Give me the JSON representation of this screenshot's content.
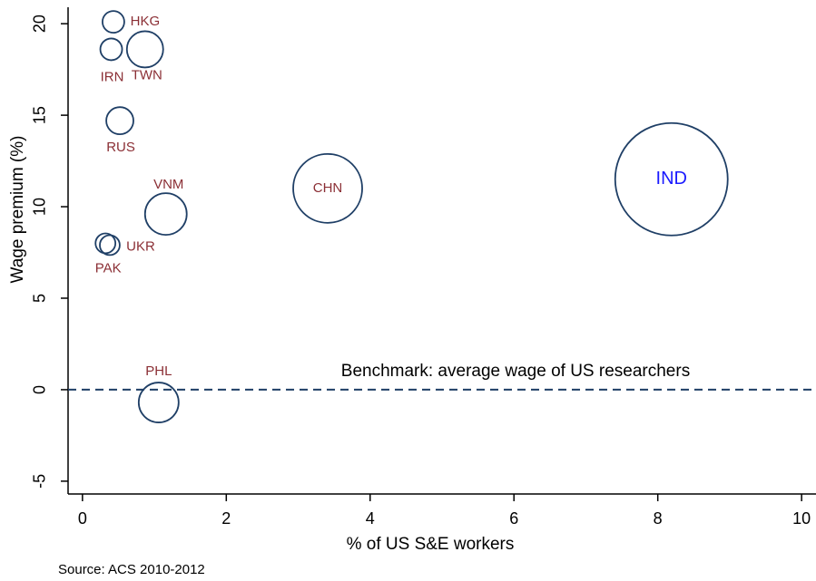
{
  "chart_data": {
    "type": "scatter",
    "x_label": "% of US S&E workers",
    "y_label": "Wage premium (%)",
    "annotation": "Benchmark: average wage of US researchers",
    "source": "Source: ACS 2010-2012",
    "reference_line": 0,
    "labels": [
      "HKG",
      "IRN",
      "TWN",
      "RUS",
      "VNM",
      "PAK",
      "UKR",
      "PHL",
      "CHN",
      "IND"
    ],
    "x": [
      0.43,
      0.4,
      0.87,
      0.52,
      1.16,
      0.32,
      0.38,
      1.06,
      3.41,
      8.19
    ],
    "y": [
      20.1,
      18.6,
      18.6,
      14.7,
      9.6,
      8.0,
      7.9,
      -0.7,
      11.0,
      11.5
    ],
    "sizes": [
      0.36,
      0.36,
      1.0,
      0.56,
      1.32,
      0.3,
      0.3,
      1.21,
      3.61,
      9.61
    ],
    "label_colors": [
      "#8b2f35",
      "#8b2f35",
      "#8b2f35",
      "#8b2f35",
      "#8b2f35",
      "#8b2f35",
      "#8b2f35",
      "#8b2f35",
      "#8b2f35",
      "#1a1aff"
    ],
    "color": "#1f3f66",
    "reference_color": "#1f3f66",
    "xlim": [
      -0.2,
      10.2
    ],
    "ylim": [
      -5.7,
      20.9
    ],
    "xticks": [
      0,
      2,
      4,
      6,
      8,
      10
    ],
    "yticks": [
      -5,
      0,
      5,
      10,
      15,
      20
    ]
  }
}
